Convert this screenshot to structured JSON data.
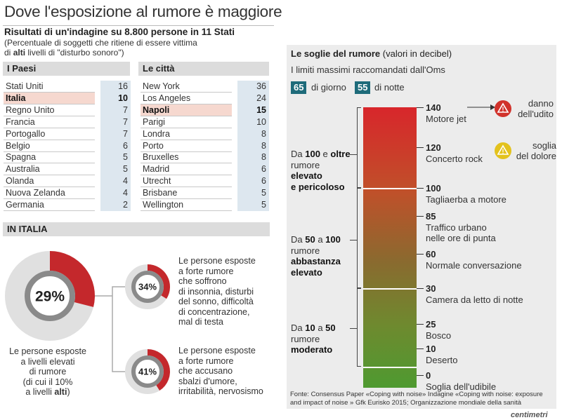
{
  "header": {
    "title": "Dove l'esposizione al rumore è maggiore",
    "subtitle": "Risultati di un'indagine su 8.800 persone in 11 Stati",
    "desc_line1": "(Percentuale di soggetti che ritiene di essere vittima",
    "desc_pre": "di ",
    "desc_bold": "alti",
    "desc_post": " livelli di \"disturbo sonoro\")"
  },
  "chart_data": [
    {
      "type": "table",
      "title": "I Paesi",
      "categories": [
        "Stati Uniti",
        "Italia",
        "Regno Unito",
        "Francia",
        "Portogallo",
        "Belgio",
        "Spagna",
        "Australia",
        "Olanda",
        "Nuova Zelanda",
        "Germania"
      ],
      "values": [
        16,
        10,
        7,
        7,
        7,
        6,
        5,
        5,
        4,
        4,
        2
      ],
      "highlight": "Italia"
    },
    {
      "type": "table",
      "title": "Le città",
      "categories": [
        "New York",
        "Los Angeles",
        "Napoli",
        "Parigi",
        "Londra",
        "Porto",
        "Bruxelles",
        "Madrid",
        "Utrecht",
        "Brisbane",
        "Wellington"
      ],
      "values": [
        36,
        24,
        15,
        10,
        8,
        8,
        8,
        6,
        6,
        5,
        5
      ],
      "highlight": "Napoli"
    },
    {
      "type": "pie",
      "title": "IN ITALIA",
      "donuts": [
        {
          "value": 29,
          "label": "29%",
          "caption": [
            "Le persone esposte",
            "a livelli elevati",
            "di rumore",
            "(di cui il 10%"
          ],
          "caption_pre": "a livelli ",
          "caption_bold": "alti",
          "caption_post": ")"
        },
        {
          "value": 34,
          "label": "34%",
          "caption": [
            "Le persone esposte",
            "a forte rumore",
            "che soffrono",
            "di insonnia, disturbi",
            "del sonno, difficoltà",
            "di concentrazione,",
            "mal di testa"
          ]
        },
        {
          "value": 41,
          "label": "41%",
          "caption": [
            "Le persone esposte",
            "a forte rumore",
            "che accusano",
            "sbalzi d'umore,",
            "irritabilità, nervosismo"
          ]
        }
      ],
      "colors": {
        "slice": "#c4282c",
        "ring": "#e0e0e0",
        "inner_ring": "#8a8a8a"
      }
    },
    {
      "type": "bar",
      "title": "Le soglie del rumore",
      "unit": "(valori in decibel)",
      "oms_text": "I limiti massimi raccomandati dall'Oms",
      "oms_day": "65",
      "oms_day_label": "di giorno",
      "oms_night": "55",
      "oms_night_label": "di notte",
      "ylim": [
        0,
        140
      ],
      "levels": [
        {
          "db": 140,
          "label": "Motore jet",
          "icon": "danger-icon",
          "icon_text": [
            "danno",
            "dell'udito"
          ],
          "icon_color": "#d1322b"
        },
        {
          "db": 120,
          "label": "Concerto rock",
          "icon": "warning-icon",
          "icon_text": [
            "soglia",
            "del dolore"
          ],
          "icon_color": "#e3c21d"
        },
        {
          "db": 100,
          "label": "Tagliaerba a motore"
        },
        {
          "db": 85,
          "label": "Traffico urbano",
          "label2": "nelle ore di punta"
        },
        {
          "db": 60,
          "label": "Normale conversazione"
        },
        {
          "db": 30,
          "label": "Camera da letto di notte"
        },
        {
          "db": 25,
          "label": "Bosco"
        },
        {
          "db": 10,
          "label": "Deserto"
        },
        {
          "db": 0,
          "label": "Soglia dell'udibile"
        }
      ],
      "ranges": [
        {
          "pre": "Da ",
          "from": "100",
          "mid": " e ",
          "to": "oltre",
          "line2": "rumore",
          "bold1": "elevato",
          "bold2": "e pericoloso"
        },
        {
          "pre": "Da ",
          "from": "50",
          "mid": " a ",
          "to": "100",
          "line2": "rumore",
          "bold1": "abbastanza",
          "bold2": "elevato"
        },
        {
          "pre": "Da ",
          "from": "10",
          "mid": " a ",
          "to": "50",
          "line2": "rumore",
          "bold1": "moderato",
          "bold2": ""
        }
      ]
    }
  ],
  "labels": {
    "paesi_header": "I Paesi",
    "citta_header": "Le città",
    "italia_header": "IN ITALIA"
  },
  "footer": {
    "source1": "Fonte: Consensus Paper «Coping with noise» Indagine «Coping with noise: exposure",
    "source2": "and impact of noise » Gfk Eurisko 2015; Organizzazione mondiale della sanità",
    "brand": "centimetri"
  }
}
